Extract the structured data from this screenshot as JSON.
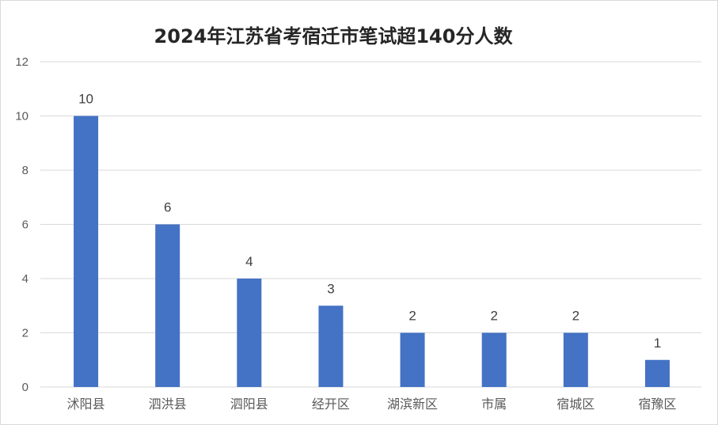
{
  "chart_data": {
    "type": "bar",
    "title": "2024年江苏省考宿迁市笔试超140分人数",
    "categories": [
      "沭阳县",
      "泗洪县",
      "泗阳县",
      "经开区",
      "湖滨新区",
      "市属",
      "宿城区",
      "宿豫区"
    ],
    "values": [
      10,
      6,
      4,
      3,
      2,
      2,
      2,
      1
    ],
    "ylim": [
      0,
      12
    ],
    "yticks": [
      0,
      2,
      4,
      6,
      8,
      10,
      12
    ],
    "grid": true,
    "legend": "none",
    "bar_color": "#4472c4",
    "grid_color": "#d9d9d9"
  }
}
